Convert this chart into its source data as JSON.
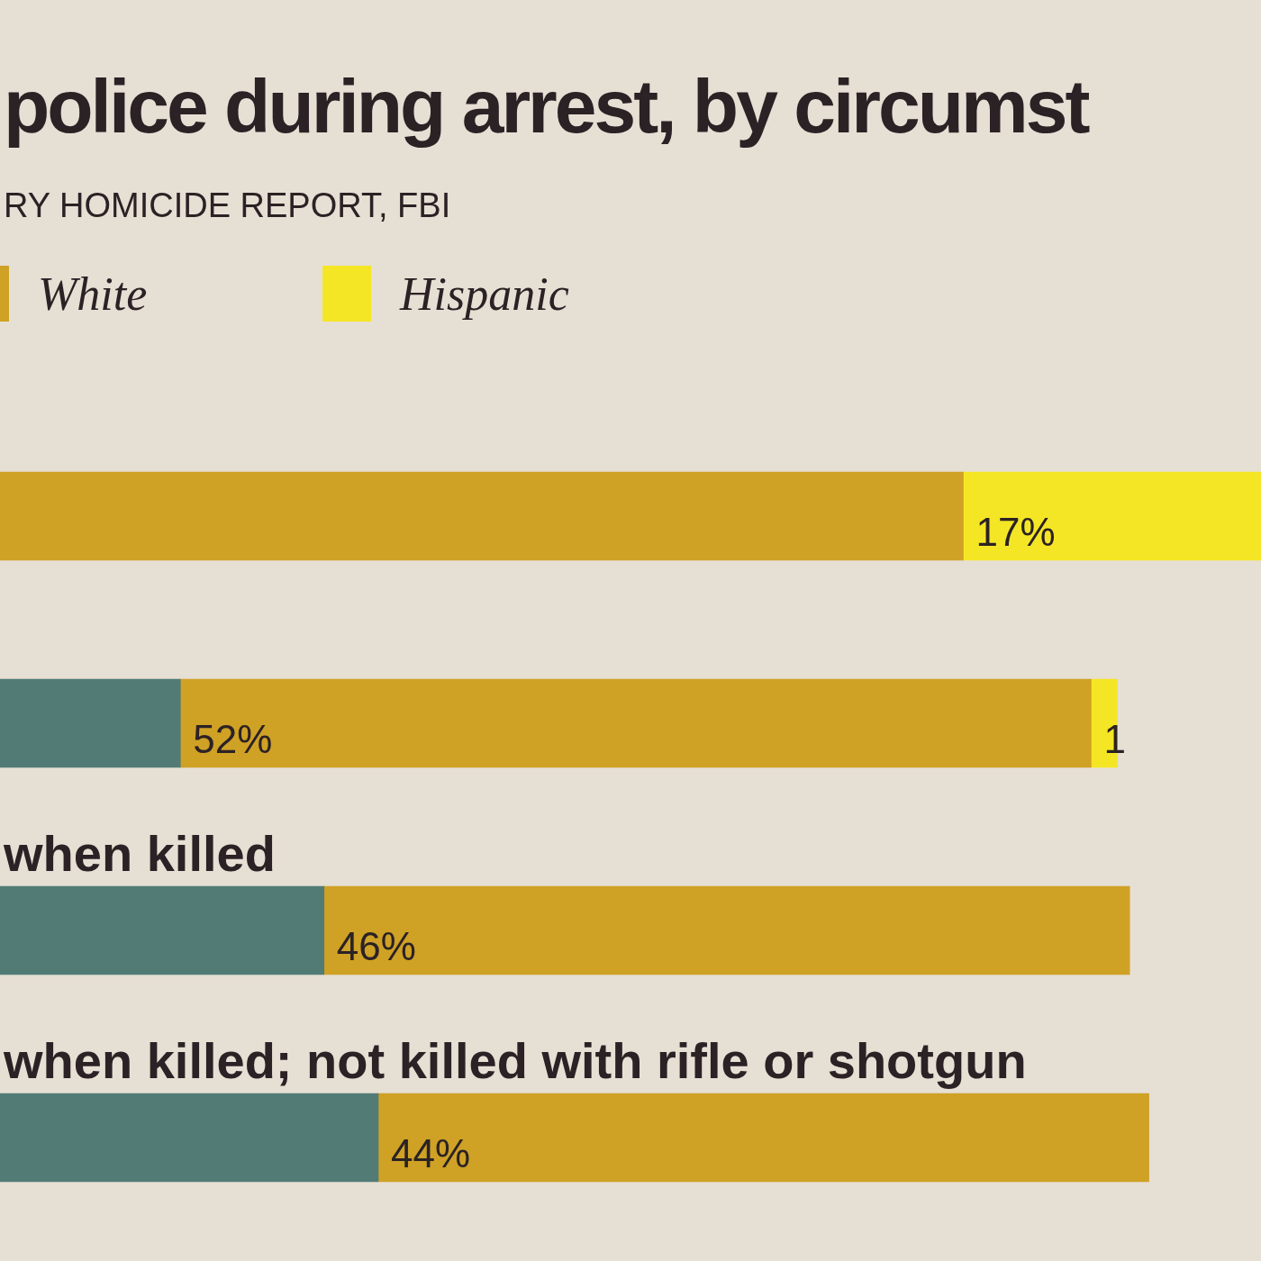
{
  "chart_data": {
    "type": "bar",
    "orientation": "horizontal",
    "stacked": true,
    "title": "police during arrest, by circumst",
    "subtitle": "RY HOMICIDE REPORT, FBI",
    "categories": [
      null,
      null,
      "when killed",
      "when killed; not killed with rifle or shotgun"
    ],
    "xlim": [
      0,
      72
    ],
    "legend": "top left",
    "series": [
      {
        "color": "#527b76",
        "values": [
          null,
          10.3,
          18.5,
          21.6
        ]
      },
      {
        "name": "White",
        "color": "#cfa125",
        "values": [
          55,
          52,
          46,
          44
        ],
        "value_labels": [
          null,
          "52%",
          "46%",
          "44%"
        ]
      },
      {
        "name": "Hispanic",
        "color": "#f5e625",
        "values": [
          17,
          1.5,
          null,
          null
        ],
        "value_labels": [
          "17%",
          "1",
          null,
          null
        ]
      }
    ]
  }
}
